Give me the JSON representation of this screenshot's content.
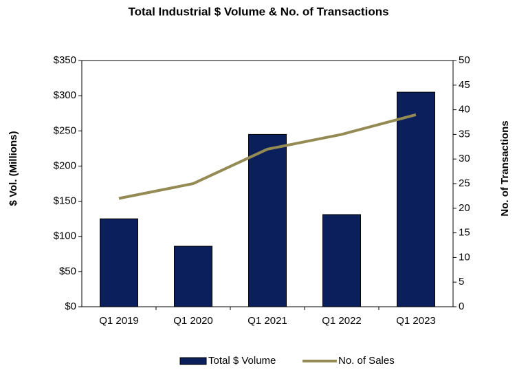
{
  "chart_data": {
    "type": "bar",
    "title": "Total Industrial $ Volume & No. of Transactions",
    "categories": [
      "Q1 2019",
      "Q1 2020",
      "Q1 2021",
      "Q1 2022",
      "Q1 2023"
    ],
    "series": [
      {
        "name": "Total $ Volume",
        "type": "bar",
        "color": "#0b1f5c",
        "values": [
          125,
          86,
          245,
          131,
          305
        ]
      },
      {
        "name": "No. of Sales",
        "type": "line",
        "axis": "y2",
        "color": "#948a54",
        "values": [
          22,
          25,
          32,
          35,
          39
        ]
      }
    ],
    "ylabel": "$ Vol. (Millions)",
    "y2label": "No. of Transactions",
    "ylim": [
      0,
      350
    ],
    "yticks": [
      {
        "value": 0,
        "label": "$0"
      },
      {
        "value": 50,
        "label": "$50"
      },
      {
        "value": 100,
        "label": "$100"
      },
      {
        "value": 150,
        "label": "$150"
      },
      {
        "value": 200,
        "label": "$200"
      },
      {
        "value": 250,
        "label": "$250"
      },
      {
        "value": 300,
        "label": "$300"
      },
      {
        "value": 350,
        "label": "$350"
      }
    ],
    "y2lim": [
      0,
      50
    ],
    "y2ticks": [
      0,
      5,
      10,
      15,
      20,
      25,
      30,
      35,
      40,
      45,
      50
    ],
    "legend": "bottom"
  }
}
